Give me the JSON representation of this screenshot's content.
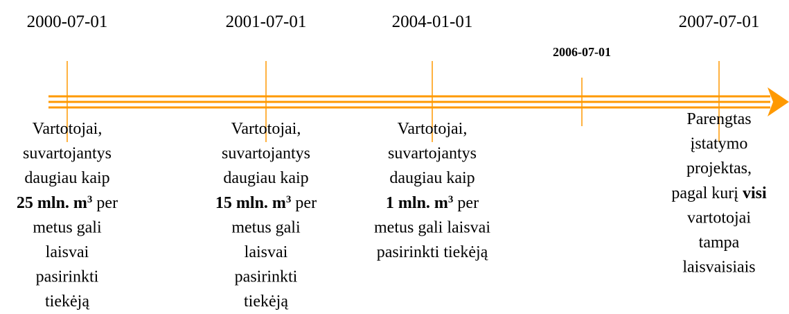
{
  "events": [
    {
      "date": "2000-07-01",
      "lines": [
        [
          {
            "text": "Vartotojai,"
          }
        ],
        [
          {
            "text": "suvartojantys"
          }
        ],
        [
          {
            "text": "daugiau kaip"
          }
        ],
        [
          {
            "text": "25 mln. m",
            "bold": true
          },
          {
            "text": "3",
            "bold": true,
            "sup": true
          },
          {
            "text": " per"
          }
        ],
        [
          {
            "text": "metus gali"
          }
        ],
        [
          {
            "text": "laisvai"
          }
        ],
        [
          {
            "text": "pasirinkti"
          }
        ],
        [
          {
            "text": "tiekėją"
          }
        ]
      ]
    },
    {
      "date": "2001-07-01",
      "lines": [
        [
          {
            "text": "Vartotojai,"
          }
        ],
        [
          {
            "text": "suvartojantys"
          }
        ],
        [
          {
            "text": "daugiau kaip"
          }
        ],
        [
          {
            "text": "15 mln. m",
            "bold": true
          },
          {
            "text": "3",
            "bold": true,
            "sup": true
          },
          {
            "text": " per"
          }
        ],
        [
          {
            "text": "metus gali"
          }
        ],
        [
          {
            "text": "laisvai"
          }
        ],
        [
          {
            "text": "pasirinkti"
          }
        ],
        [
          {
            "text": "tiekėją"
          }
        ]
      ]
    },
    {
      "date": "2004-01-01",
      "lines": [
        [
          {
            "text": "Vartotojai,"
          }
        ],
        [
          {
            "text": "suvartojantys"
          }
        ],
        [
          {
            "text": "daugiau kaip"
          }
        ],
        [
          {
            "text": "1 mln. m",
            "bold": true
          },
          {
            "text": "3",
            "bold": true,
            "sup": true
          },
          {
            "text": " per"
          }
        ],
        [
          {
            "text": "metus gali laisvai"
          }
        ],
        [
          {
            "text": "pasirinkti tiekėją"
          }
        ]
      ]
    },
    {
      "date": "2007-07-01",
      "lines": [
        [
          {
            "text": "Parengtas"
          }
        ],
        [
          {
            "text": "įstatymo"
          }
        ],
        [
          {
            "text": "projektas,"
          }
        ],
        [
          {
            "text": "pagal kurį "
          },
          {
            "text": "visi",
            "bold": true
          }
        ],
        [
          {
            "text": "vartotojai"
          }
        ],
        [
          {
            "text": "tampa"
          }
        ],
        [
          {
            "text": "laisvaisiais"
          }
        ]
      ]
    }
  ],
  "milestone": {
    "date": "2006-07-01",
    "color": "#e00000"
  }
}
